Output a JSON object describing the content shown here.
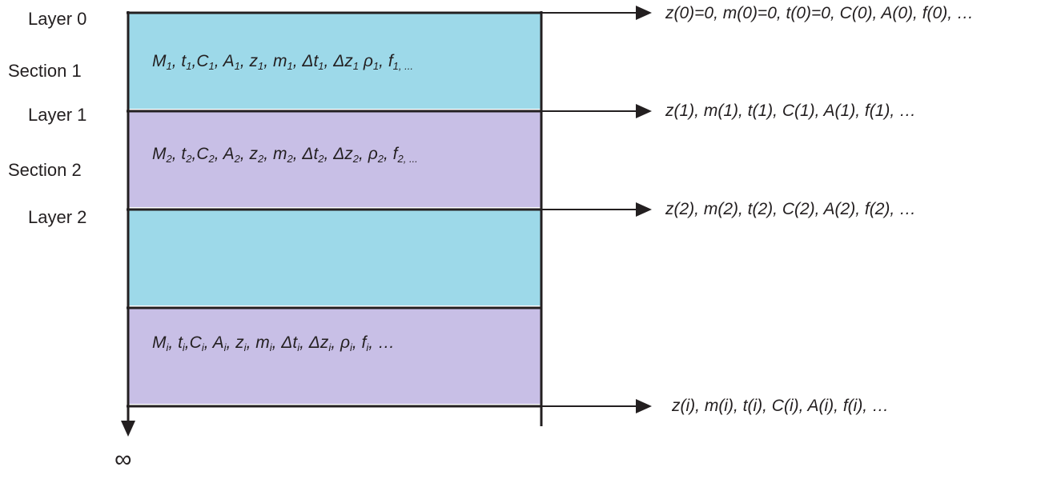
{
  "left_labels": {
    "layer_0": "Layer 0",
    "section_1": "Section 1",
    "layer_1": "Layer 1",
    "section_2": "Section 2",
    "layer_2": "Layer 2"
  },
  "section_1": {
    "M": "M",
    "M_sub": "1",
    "t": "t",
    "t_sub": "1",
    "C": "C",
    "C_sub": "1",
    "A": "A",
    "A_sub": "1",
    "z": "z",
    "z_sub": "1",
    "m": "m",
    "m_sub": "1",
    "dt": "Δt",
    "dt_sub": "1",
    "dz": "Δz",
    "dz_sub": "1",
    "rho": "ρ",
    "rho_sub": "1",
    "f": "f",
    "f_sub": "1, ..."
  },
  "section_2": {
    "M": "M",
    "M_sub": "2",
    "t": "t",
    "t_sub": "2",
    "C": "C",
    "C_sub": "2",
    "A": "A",
    "A_sub": "2",
    "z": "z",
    "z_sub": "2",
    "m": "m",
    "m_sub": "2",
    "dt": "Δt",
    "dt_sub": "2",
    "dz": "Δz",
    "dz_sub": "2",
    "rho": "ρ",
    "rho_sub": "2",
    "f": "f",
    "f_sub": "2, ..."
  },
  "section_i": {
    "M": "M",
    "M_sub": "i",
    "t": "t",
    "t_sub": "i",
    "C": "C",
    "C_sub": "i",
    "A": "A",
    "A_sub": "i",
    "z": "z",
    "z_sub": "i",
    "m": "m",
    "m_sub": "i",
    "dt": "Δt",
    "dt_sub": "i",
    "dz": "Δz",
    "dz_sub": "i",
    "rho": "ρ",
    "rho_sub": "i",
    "f": "f",
    "f_sub": "i",
    "tail": ", …"
  },
  "outputs": {
    "layer_0": "z(0)=0, m(0)=0, t(0)=0, C(0), A(0), f(0), …",
    "layer_1": "z(1), m(1), t(1), C(1), A(1), f(1), …",
    "layer_2": "z(2), m(2), t(2), C(2), A(2), f(2), …",
    "layer_i": "z(i), m(i), t(i), C(i), A(i), f(i), …"
  },
  "bottom_symbol": "∞",
  "colors": {
    "band_cyan": "#9dd9e9",
    "band_lavender": "#c8bfe6",
    "line": "#231f20"
  }
}
